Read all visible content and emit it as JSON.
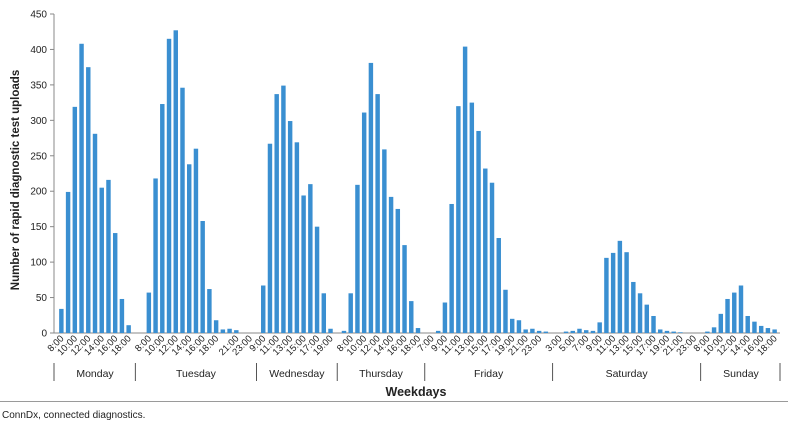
{
  "chart_data": {
    "type": "bar",
    "ylabel": "Number of rapid diagnostic test uploads",
    "xlabel": "Weekdays",
    "ylim": [
      0,
      450
    ],
    "yticks": [
      0,
      50,
      100,
      150,
      200,
      250,
      300,
      350,
      400,
      450
    ],
    "bar_color": "#3a8fd1",
    "days": [
      {
        "name": "Monday",
        "hours": [
          "8:00",
          "9:00",
          "10:00",
          "11:00",
          "12:00",
          "13:00",
          "14:00",
          "15:00",
          "16:00",
          "17:00",
          "18:00"
        ],
        "values": [
          34,
          199,
          319,
          408,
          375,
          281,
          205,
          216,
          141,
          48,
          11
        ],
        "tick_labels": [
          "8:00",
          "10:00",
          "12:00",
          "14:00",
          "16:00",
          "18:00"
        ]
      },
      {
        "name": "Tuesday",
        "hours": [
          "7:00",
          "8:00",
          "9:00",
          "10:00",
          "11:00",
          "12:00",
          "13:00",
          "14:00",
          "15:00",
          "16:00",
          "17:00",
          "18:00",
          "19:00",
          "20:00",
          "21:00",
          "22:00",
          "23:00"
        ],
        "values": [
          0,
          57,
          218,
          323,
          415,
          427,
          346,
          238,
          260,
          158,
          62,
          18,
          5,
          6,
          4,
          0,
          0
        ],
        "tick_labels": [
          "8:00",
          "10:00",
          "12:00",
          "14:00",
          "16:00",
          "18:00",
          "21:00",
          "23:00"
        ]
      },
      {
        "name": "Wednesday",
        "hours": [
          "9:00",
          "10:00",
          "11:00",
          "12:00",
          "13:00",
          "14:00",
          "15:00",
          "16:00",
          "17:00",
          "18:00",
          "19:00"
        ],
        "values": [
          67,
          267,
          337,
          349,
          299,
          269,
          194,
          210,
          150,
          56,
          6
        ],
        "tick_labels": [
          "9:00",
          "11:00",
          "13:00",
          "15:00",
          "17:00",
          "19:00"
        ]
      },
      {
        "name": "Thursday",
        "hours": [
          "7:00",
          "8:00",
          "9:00",
          "10:00",
          "11:00",
          "12:00",
          "13:00",
          "14:00",
          "15:00",
          "16:00",
          "17:00",
          "18:00"
        ],
        "values": [
          3,
          56,
          209,
          311,
          381,
          337,
          259,
          192,
          175,
          124,
          45,
          7
        ],
        "tick_labels": [
          "8:00",
          "10:00",
          "12:00",
          "14:00",
          "16:00",
          "18:00"
        ]
      },
      {
        "name": "Friday",
        "hours": [
          "7:00",
          "8:00",
          "9:00",
          "10:00",
          "11:00",
          "12:00",
          "13:00",
          "14:00",
          "15:00",
          "16:00",
          "17:00",
          "18:00",
          "19:00",
          "20:00",
          "21:00",
          "22:00",
          "23:00",
          "0:00"
        ],
        "values": [
          0,
          3,
          43,
          182,
          320,
          404,
          325,
          285,
          232,
          212,
          134,
          61,
          20,
          18,
          5,
          6,
          3,
          2
        ],
        "tick_labels": [
          "7:00",
          "9:00",
          "11:00",
          "13:00",
          "15:00",
          "17:00",
          "19:00",
          "21:00",
          "23:00"
        ]
      },
      {
        "name": "Saturday",
        "hours": [
          "3:00",
          "4:00",
          "5:00",
          "6:00",
          "7:00",
          "8:00",
          "9:00",
          "10:00",
          "11:00",
          "12:00",
          "13:00",
          "14:00",
          "15:00",
          "16:00",
          "17:00",
          "18:00",
          "19:00",
          "20:00",
          "21:00",
          "22:00",
          "23:00"
        ],
        "values": [
          0,
          2,
          3,
          6,
          4,
          3,
          15,
          106,
          113,
          130,
          114,
          72,
          56,
          40,
          24,
          5,
          3,
          2,
          1,
          0,
          0
        ],
        "tick_labels": [
          "3:00",
          "5:00",
          "7:00",
          "9:00",
          "11:00",
          "13:00",
          "15:00",
          "17:00",
          "19:00",
          "21:00",
          "23:00"
        ]
      },
      {
        "name": "Sunday",
        "hours": [
          "8:00",
          "9:00",
          "10:00",
          "11:00",
          "12:00",
          "13:00",
          "14:00",
          "15:00",
          "16:00",
          "17:00",
          "18:00"
        ],
        "values": [
          2,
          8,
          27,
          48,
          57,
          67,
          24,
          16,
          10,
          7,
          5
        ],
        "tick_labels": [
          "8:00",
          "10:00",
          "12:00",
          "14:00",
          "16:00",
          "18:00"
        ]
      }
    ]
  },
  "caption": "ConnDx, connected diagnostics."
}
